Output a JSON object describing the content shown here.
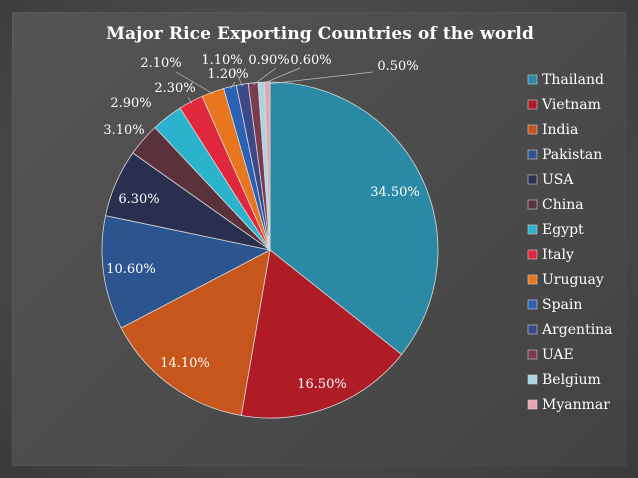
{
  "chart_data": {
    "type": "pie",
    "title": "Major Rice Exporting Countries of the world",
    "categories": [
      "Thailand",
      "Vietnam",
      "India",
      "Pakistan",
      "USA",
      "China",
      "Egypt",
      "Italy",
      "Uruguay",
      "Spain",
      "Argentina",
      "UAE",
      "Belgium",
      "Myanmar"
    ],
    "values": [
      34.5,
      16.5,
      14.1,
      10.6,
      6.3,
      3.1,
      2.9,
      2.3,
      2.1,
      1.2,
      1.1,
      0.9,
      0.6,
      0.5
    ],
    "labels": [
      "34.50%",
      "16.50%",
      "14.10%",
      "10.60%",
      "6.30%",
      "3.10%",
      "2.90%",
      "2.30%",
      "2.10%",
      "1.20%",
      "1.10%",
      "0.90%",
      "0.60%",
      "0.50%"
    ],
    "colors": [
      "#2a8aa6",
      "#b01c25",
      "#c6561b",
      "#2c5590",
      "#2a2f50",
      "#59323c",
      "#2bb2cc",
      "#e0273b",
      "#e8761e",
      "#2b61b5",
      "#3b4a86",
      "#7a3b4e",
      "#a8d4e6",
      "#e9a3ad"
    ],
    "legend_position": "right"
  }
}
